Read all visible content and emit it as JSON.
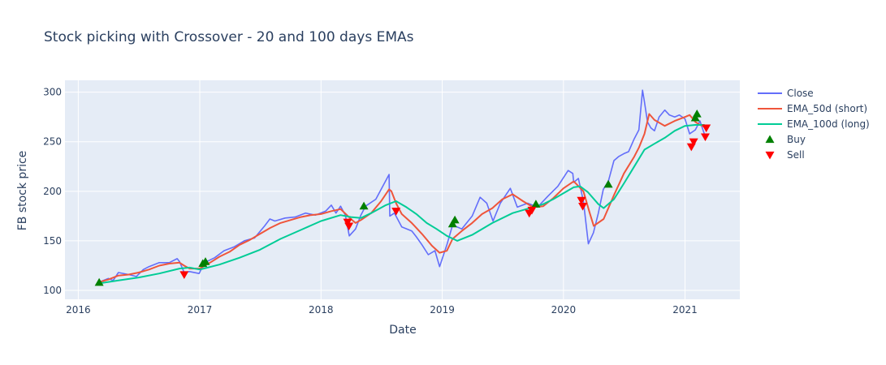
{
  "colors": {
    "plot_bg": "#e5ecf6",
    "grid": "#ffffff",
    "text": "#2a3f5f",
    "close": "#636efa",
    "ema_short": "#ef553b",
    "ema_long": "#00cc96",
    "buy": "#008000",
    "sell": "#ff0000"
  },
  "chart_data": {
    "type": "line",
    "title": "Stock picking with Crossover - 20 and 100 days EMAs",
    "xlabel": "Date",
    "ylabel": "FB stock price",
    "x_ticks": [
      "2016",
      "2017",
      "2018",
      "2019",
      "2020",
      "2021"
    ],
    "y_ticks": [
      100,
      150,
      200,
      250,
      300
    ],
    "xlim": [
      "2015-11-22",
      "2021-06-15"
    ],
    "ylim": [
      91,
      312
    ],
    "grid": true,
    "legend_position": "right",
    "series": [
      {
        "name": "Close",
        "kind": "line",
        "x": [
          "2016-03-01",
          "2016-04-01",
          "2016-04-15",
          "2016-05-01",
          "2016-06-01",
          "2016-06-24",
          "2016-07-15",
          "2016-08-01",
          "2016-09-01",
          "2016-10-01",
          "2016-10-25",
          "2016-11-01",
          "2016-11-15",
          "2016-12-01",
          "2016-12-30",
          "2017-01-15",
          "2017-02-15",
          "2017-03-15",
          "2017-04-15",
          "2017-05-15",
          "2017-06-15",
          "2017-07-15",
          "2017-07-31",
          "2017-08-15",
          "2017-09-15",
          "2017-10-15",
          "2017-11-15",
          "2017-12-15",
          "2018-01-15",
          "2018-02-01",
          "2018-02-15",
          "2018-03-01",
          "2018-03-15",
          "2018-03-27",
          "2018-04-15",
          "2018-05-01",
          "2018-05-15",
          "2018-06-15",
          "2018-07-25",
          "2018-07-27",
          "2018-08-10",
          "2018-09-01",
          "2018-10-01",
          "2018-10-15",
          "2018-11-01",
          "2018-11-20",
          "2018-12-10",
          "2018-12-24",
          "2019-01-15",
          "2019-02-01",
          "2019-03-01",
          "2019-04-01",
          "2019-04-25",
          "2019-05-15",
          "2019-06-03",
          "2019-06-25",
          "2019-07-25",
          "2019-08-15",
          "2019-09-15",
          "2019-10-15",
          "2019-11-15",
          "2019-12-15",
          "2020-01-15",
          "2020-01-29",
          "2020-02-01",
          "2020-02-15",
          "2020-03-01",
          "2020-03-16",
          "2020-03-31",
          "2020-04-15",
          "2020-04-30",
          "2020-05-15",
          "2020-06-01",
          "2020-06-15",
          "2020-07-01",
          "2020-07-15",
          "2020-08-01",
          "2020-08-15",
          "2020-08-26",
          "2020-09-01",
          "2020-09-10",
          "2020-09-20",
          "2020-10-01",
          "2020-10-15",
          "2020-11-01",
          "2020-11-15",
          "2020-12-01",
          "2020-12-15",
          "2021-01-01",
          "2021-01-15",
          "2021-02-01",
          "2021-02-15",
          "2021-03-01"
        ],
        "y": [
          108,
          112,
          110,
          118,
          116,
          114,
          121,
          124,
          128,
          128,
          132,
          129,
          118,
          119,
          117,
          128,
          133,
          140,
          144,
          150,
          153,
          165,
          172,
          170,
          173,
          174,
          178,
          176,
          180,
          186,
          178,
          185,
          176,
          155,
          162,
          176,
          185,
          192,
          217,
          175,
          178,
          164,
          160,
          154,
          146,
          136,
          140,
          124,
          146,
          166,
          162,
          175,
          194,
          188,
          170,
          188,
          203,
          184,
          188,
          184,
          195,
          205,
          221,
          218,
          209,
          213,
          190,
          147,
          158,
          178,
          202,
          210,
          231,
          235,
          238,
          240,
          253,
          262,
          302,
          290,
          270,
          264,
          261,
          275,
          282,
          277,
          275,
          277,
          273,
          258,
          262,
          271,
          257
        ]
      },
      {
        "name": "EMA_50d (short)",
        "kind": "line",
        "x": [
          "2016-03-01",
          "2016-04-01",
          "2016-05-01",
          "2016-06-01",
          "2016-07-01",
          "2016-08-01",
          "2016-09-01",
          "2016-10-01",
          "2016-11-01",
          "2016-11-15",
          "2016-12-01",
          "2017-01-01",
          "2017-02-01",
          "2017-03-01",
          "2017-04-01",
          "2017-05-01",
          "2017-06-01",
          "2017-07-01",
          "2017-08-01",
          "2017-09-01",
          "2017-10-01",
          "2017-11-01",
          "2017-12-01",
          "2018-01-01",
          "2018-02-01",
          "2018-03-01",
          "2018-03-20",
          "2018-04-01",
          "2018-04-15",
          "2018-05-01",
          "2018-06-01",
          "2018-07-01",
          "2018-07-25",
          "2018-08-01",
          "2018-08-15",
          "2018-09-01",
          "2018-10-01",
          "2018-11-01",
          "2018-12-01",
          "2018-12-24",
          "2019-01-15",
          "2019-02-01",
          "2019-03-01",
          "2019-04-01",
          "2019-05-01",
          "2019-06-01",
          "2019-07-01",
          "2019-08-01",
          "2019-09-01",
          "2019-10-01",
          "2019-11-01",
          "2019-12-01",
          "2020-01-01",
          "2020-02-01",
          "2020-03-01",
          "2020-03-20",
          "2020-04-01",
          "2020-05-01",
          "2020-06-01",
          "2020-07-01",
          "2020-08-01",
          "2020-08-15",
          "2020-09-01",
          "2020-09-15",
          "2020-10-01",
          "2020-11-01",
          "2020-12-01",
          "2021-01-01",
          "2021-01-15",
          "2021-02-01",
          "2021-02-15",
          "2021-03-01"
        ],
        "y": [
          108,
          111,
          115,
          116,
          118,
          121,
          125,
          127,
          128,
          125,
          122,
          122,
          128,
          134,
          139,
          146,
          151,
          157,
          163,
          168,
          171,
          174,
          176,
          177,
          180,
          182,
          176,
          172,
          168,
          171,
          178,
          190,
          202,
          200,
          188,
          177,
          168,
          157,
          145,
          138,
          140,
          152,
          160,
          168,
          177,
          183,
          192,
          197,
          190,
          184,
          185,
          193,
          203,
          210,
          200,
          178,
          165,
          172,
          196,
          218,
          235,
          244,
          258,
          278,
          272,
          266,
          271,
          275,
          277,
          270,
          267,
          265
        ]
      },
      {
        "name": "EMA_100d (long)",
        "kind": "line",
        "x": [
          "2016-03-01",
          "2016-05-01",
          "2016-07-01",
          "2016-09-01",
          "2016-11-01",
          "2016-12-01",
          "2017-01-01",
          "2017-03-01",
          "2017-05-01",
          "2017-07-01",
          "2017-09-01",
          "2017-11-01",
          "2018-01-01",
          "2018-03-01",
          "2018-04-01",
          "2018-05-01",
          "2018-06-01",
          "2018-07-15",
          "2018-08-15",
          "2018-09-15",
          "2018-10-15",
          "2018-11-15",
          "2018-12-15",
          "2019-01-15",
          "2019-02-15",
          "2019-04-01",
          "2019-06-01",
          "2019-08-01",
          "2019-10-01",
          "2019-11-01",
          "2019-12-01",
          "2020-01-01",
          "2020-02-01",
          "2020-02-20",
          "2020-03-15",
          "2020-04-15",
          "2020-05-01",
          "2020-06-01",
          "2020-07-01",
          "2020-08-01",
          "2020-09-01",
          "2020-10-01",
          "2020-11-01",
          "2020-12-01",
          "2021-01-01",
          "2021-02-01",
          "2021-03-01"
        ],
        "y": [
          107,
          110,
          113,
          117,
          122,
          123,
          121,
          126,
          133,
          141,
          152,
          161,
          170,
          176,
          174,
          173,
          178,
          186,
          190,
          184,
          177,
          168,
          162,
          155,
          150,
          156,
          168,
          178,
          184,
          187,
          192,
          198,
          204,
          205,
          199,
          187,
          183,
          192,
          208,
          225,
          242,
          248,
          254,
          261,
          266,
          267,
          267
        ]
      },
      {
        "name": "Buy",
        "kind": "marker",
        "marker": "triangle-up",
        "x": [
          "2016-03-04",
          "2017-01-10",
          "2017-01-18",
          "2018-05-10",
          "2019-02-01",
          "2019-02-08",
          "2019-10-10",
          "2020-05-15",
          "2021-02-01",
          "2021-02-06"
        ],
        "y": [
          108,
          127,
          129,
          185,
          167,
          171,
          187,
          207,
          274,
          278
        ]
      },
      {
        "name": "Sell",
        "kind": "marker",
        "marker": "triangle-down",
        "x": [
          "2016-11-15",
          "2018-03-22",
          "2018-03-26",
          "2018-08-15",
          "2019-09-20",
          "2019-09-28",
          "2020-02-24",
          "2020-02-28",
          "2021-01-20",
          "2021-01-27",
          "2021-03-03",
          "2021-03-06"
        ],
        "y": [
          116,
          169,
          165,
          180,
          178,
          181,
          191,
          185,
          245,
          250,
          255,
          264
        ]
      }
    ]
  }
}
